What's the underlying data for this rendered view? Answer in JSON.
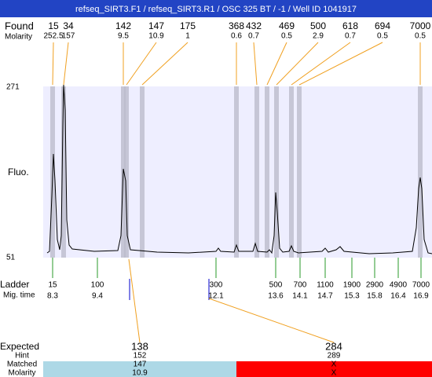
{
  "header": {
    "title": "refseq_SIRT3.F1 / refseq_SIRT3.R1 / OSC 325 BT / -1 / Well ID 1041917"
  },
  "found": {
    "label": "Found",
    "sublabel": "Molarity",
    "sizes": [
      "15",
      "34",
      "142",
      "147",
      "175",
      "368",
      "432",
      "469",
      "500",
      "618",
      "694",
      "7000"
    ],
    "molarity": [
      "252.5",
      "157",
      "9.5",
      "10.9",
      "1",
      "0.6",
      "0.7",
      "0.5",
      "2.9",
      "0.7",
      "0.5",
      "0.5"
    ]
  },
  "plot": {
    "y_top": "271",
    "y_bottom": "51",
    "y_label": "Fluo."
  },
  "ladder": {
    "label": "Ladder",
    "sublabel": "Mig. time",
    "sizes": [
      "15",
      "100",
      "300",
      "500",
      "700",
      "1100",
      "1900",
      "2900",
      "4900",
      "7000"
    ],
    "times": [
      "8.3",
      "9.4",
      "12.1",
      "13.6",
      "14.1",
      "14.7",
      "15.3",
      "15.8",
      "16.4",
      "16.9"
    ]
  },
  "expected": {
    "labels": [
      "Expected",
      "Hint",
      "Matched",
      "Molarity"
    ],
    "columns": [
      [
        "138",
        "152",
        "147",
        "10.9"
      ],
      [
        "284",
        "289",
        "X",
        "X"
      ]
    ]
  }
}
